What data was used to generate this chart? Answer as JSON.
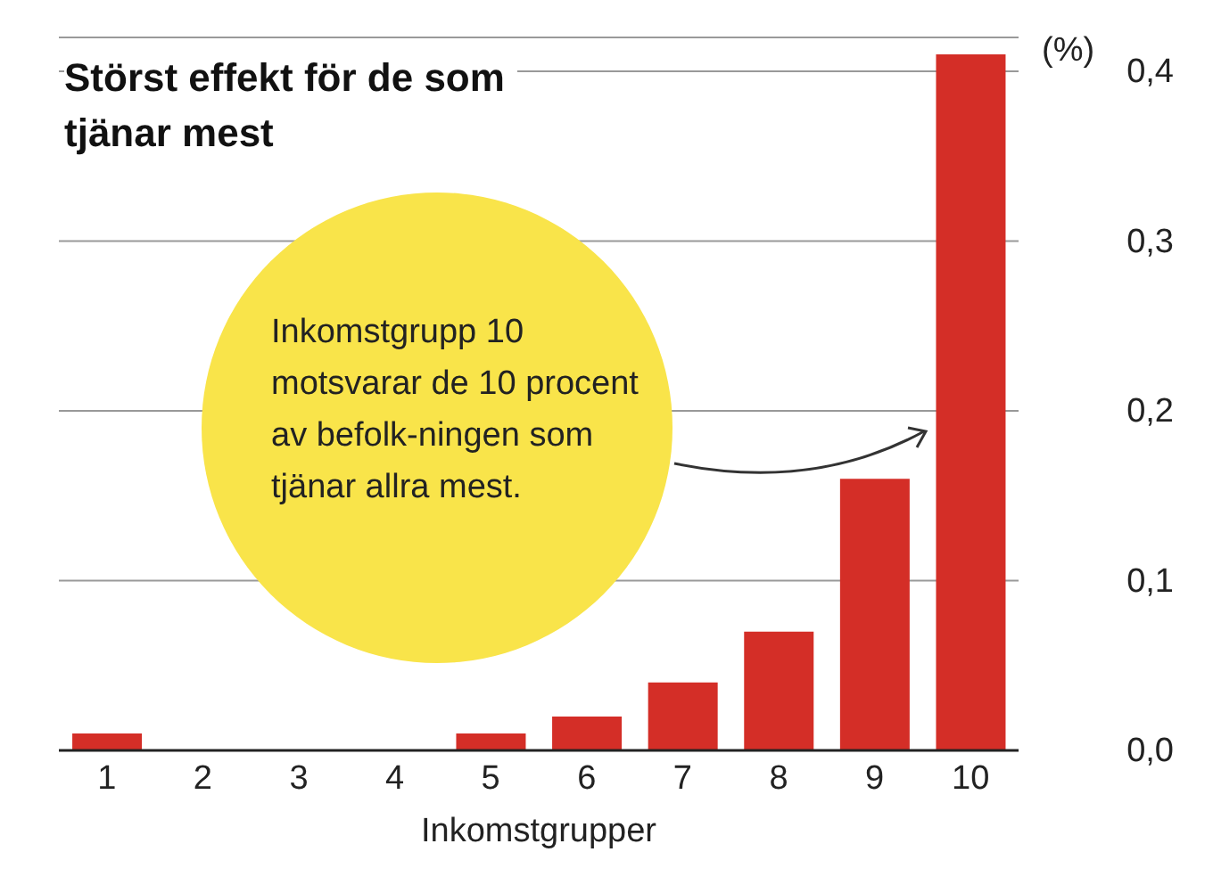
{
  "chart_data": {
    "type": "bar",
    "title": "Störst effekt för de som tjänar mest",
    "xlabel": "Inkomstgrupper",
    "ylabel": "(%)",
    "categories": [
      "1",
      "2",
      "3",
      "4",
      "5",
      "6",
      "7",
      "8",
      "9",
      "10"
    ],
    "values": [
      0.01,
      0,
      0,
      0,
      0.01,
      0.02,
      0.04,
      0.07,
      0.16,
      0.41
    ],
    "color": "#d42e27",
    "ylim": [
      0,
      0.42
    ],
    "yticks": [
      {
        "value": 0,
        "label": "0,0"
      },
      {
        "value": 0.1,
        "label": "0,1"
      },
      {
        "value": 0.2,
        "label": "0,2"
      },
      {
        "value": 0.3,
        "label": "0,3"
      },
      {
        "value": 0.4,
        "label": "0,4"
      }
    ],
    "grid": "y",
    "annotations": [
      "Inkomstgrupp 10 motsvarar de 10 procent av befolk-ningen som tjänar allra mest."
    ]
  }
}
